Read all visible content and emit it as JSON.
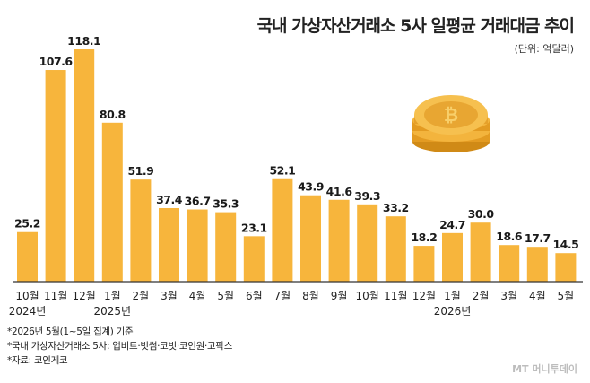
{
  "chart_data": {
    "type": "bar",
    "title": "국내 가상자산거래소 5사 일평균 거래대금 추이",
    "unit": "(단위: 억달러)",
    "categories": [
      "10월",
      "11월",
      "12월",
      "1월",
      "2월",
      "3월",
      "4월",
      "5월",
      "6월",
      "7월",
      "8월",
      "9월",
      "10월",
      "11월",
      "12월",
      "1월",
      "2월",
      "3월",
      "4월",
      "5월"
    ],
    "values": [
      25.2,
      107.6,
      118.1,
      80.8,
      51.9,
      37.4,
      36.7,
      35.3,
      23.1,
      52.1,
      43.9,
      41.6,
      39.3,
      33.2,
      18.2,
      24.7,
      30.0,
      18.6,
      17.7,
      14.5
    ],
    "value_labels": [
      "25.2",
      "107.6",
      "118.1",
      "80.8",
      "51.9",
      "37.4",
      "36.7",
      "35.3",
      "23.1",
      "52.1",
      "43.9",
      "41.6",
      "39.3",
      "33.2",
      "18.2",
      "24.7",
      "30.0",
      "18.6",
      "17.7",
      "14.5"
    ],
    "year_labels": [
      {
        "index": 0,
        "text": "2024년"
      },
      {
        "index": 3,
        "text": "2025년"
      },
      {
        "index": 15,
        "text": "2026년"
      }
    ],
    "ylim": [
      0,
      118.1
    ],
    "bar_color": "#f7b53c",
    "baseline_color": "#333333",
    "grid": false
  },
  "notes": [
    "*2026년 5월(1~5일 집계) 기준",
    "*국내 가상자산거래소 5사: 업비트·빗썸·코빗·코인원·고팍스",
    "*자료: 코인게코"
  ],
  "brand": "MT 머니투데이",
  "coin_icon": "bitcoin-coin-stack-icon"
}
